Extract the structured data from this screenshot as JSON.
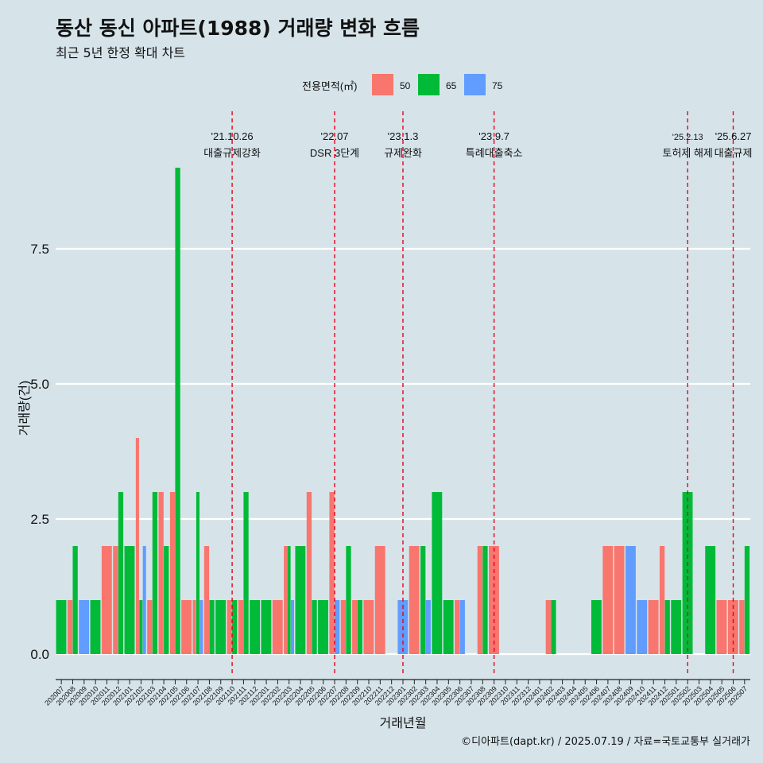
{
  "title": "동산 동신 아파트(1988) 거래량 변화 흐름",
  "subtitle": "최근 5년 한정 확대 차트",
  "caption": "©디아파트(dapt.kr) / 2025.07.19 / 자료=국토교통부 실거래가",
  "chart_data": {
    "type": "bar",
    "xlabel": "거래년월",
    "ylabel": "거래량(건)",
    "ylim": [
      0,
      9.4
    ],
    "yticks": [
      0.0,
      2.5,
      5.0,
      7.5
    ],
    "ytick_labels": [
      "0.0",
      "2.5",
      "5.0",
      "7.5"
    ],
    "legend": {
      "title": "전용면적(㎡)",
      "position": "top"
    },
    "colors": {
      "50": "#f8766d",
      "65": "#00ba38",
      "75": "#619cff"
    },
    "categories": [
      "202007",
      "202008",
      "202009",
      "202010",
      "202011",
      "202012",
      "202101",
      "202102",
      "202103",
      "202104",
      "202105",
      "202106",
      "202107",
      "202108",
      "202109",
      "202110",
      "202111",
      "202112",
      "202201",
      "202202",
      "202203",
      "202204",
      "202205",
      "202206",
      "202207",
      "202208",
      "202209",
      "202210",
      "202211",
      "202212",
      "202301",
      "202302",
      "202303",
      "202304",
      "202305",
      "202306",
      "202307",
      "202308",
      "202309",
      "202310",
      "202311",
      "202312",
      "202401",
      "202402",
      "202403",
      "202404",
      "202405",
      "202406",
      "202407",
      "202408",
      "202409",
      "202410",
      "202411",
      "202412",
      "202501",
      "202502",
      "202503",
      "202504",
      "202505",
      "202506",
      "202507"
    ],
    "series": [
      {
        "name": "50",
        "values": [
          0,
          1,
          0,
          0,
          2,
          2,
          0,
          4,
          1,
          3,
          3,
          1,
          1,
          2,
          0,
          1,
          1,
          0,
          0,
          1,
          2,
          0,
          3,
          0,
          3,
          1,
          1,
          1,
          2,
          0,
          0,
          2,
          0,
          0,
          0,
          1,
          0,
          2,
          2,
          0,
          0,
          0,
          0,
          1,
          0,
          0,
          0,
          0,
          2,
          2,
          0,
          0,
          1,
          2,
          0,
          0,
          0,
          0,
          1,
          1,
          1
        ]
      },
      {
        "name": "65",
        "values": [
          1,
          2,
          0,
          1,
          0,
          3,
          2,
          1,
          3,
          2,
          9,
          0,
          3,
          1,
          1,
          1,
          3,
          1,
          1,
          0,
          2,
          2,
          1,
          1,
          0,
          2,
          1,
          0,
          0,
          0,
          0,
          0,
          2,
          3,
          1,
          0,
          0,
          2,
          0,
          0,
          0,
          0,
          0,
          1,
          0,
          0,
          0,
          1,
          0,
          0,
          0,
          0,
          0,
          1,
          1,
          3,
          0,
          2,
          0,
          0,
          2
        ]
      },
      {
        "name": "75",
        "values": [
          0,
          0,
          1,
          0,
          0,
          0,
          0,
          2,
          0,
          0,
          0,
          0,
          1,
          0,
          0,
          0,
          0,
          0,
          0,
          0,
          1,
          0,
          0,
          0,
          1,
          0,
          0,
          0,
          0,
          0,
          1,
          0,
          1,
          0,
          0,
          1,
          0,
          0,
          0,
          0,
          0,
          0,
          0,
          0,
          0,
          0,
          0,
          0,
          0,
          0,
          2,
          1,
          0,
          0,
          0,
          0,
          0,
          0,
          0,
          0,
          0
        ]
      }
    ],
    "annotations": [
      {
        "at": "202110",
        "date": "'21.10.26",
        "label": "대출규제강화"
      },
      {
        "at": "202207",
        "date": "'22.07",
        "label": "DSR 3단계"
      },
      {
        "at": "202301",
        "date": "'23.1.3",
        "label": "규제완화"
      },
      {
        "at": "202309",
        "date": "'23.9.7",
        "label": "특례대출축소"
      },
      {
        "at": "202502",
        "date": "'25.2.13",
        "label": "토허제 해제"
      },
      {
        "at": "202506",
        "date": "'25.6.27",
        "label": "대출규제"
      }
    ]
  }
}
